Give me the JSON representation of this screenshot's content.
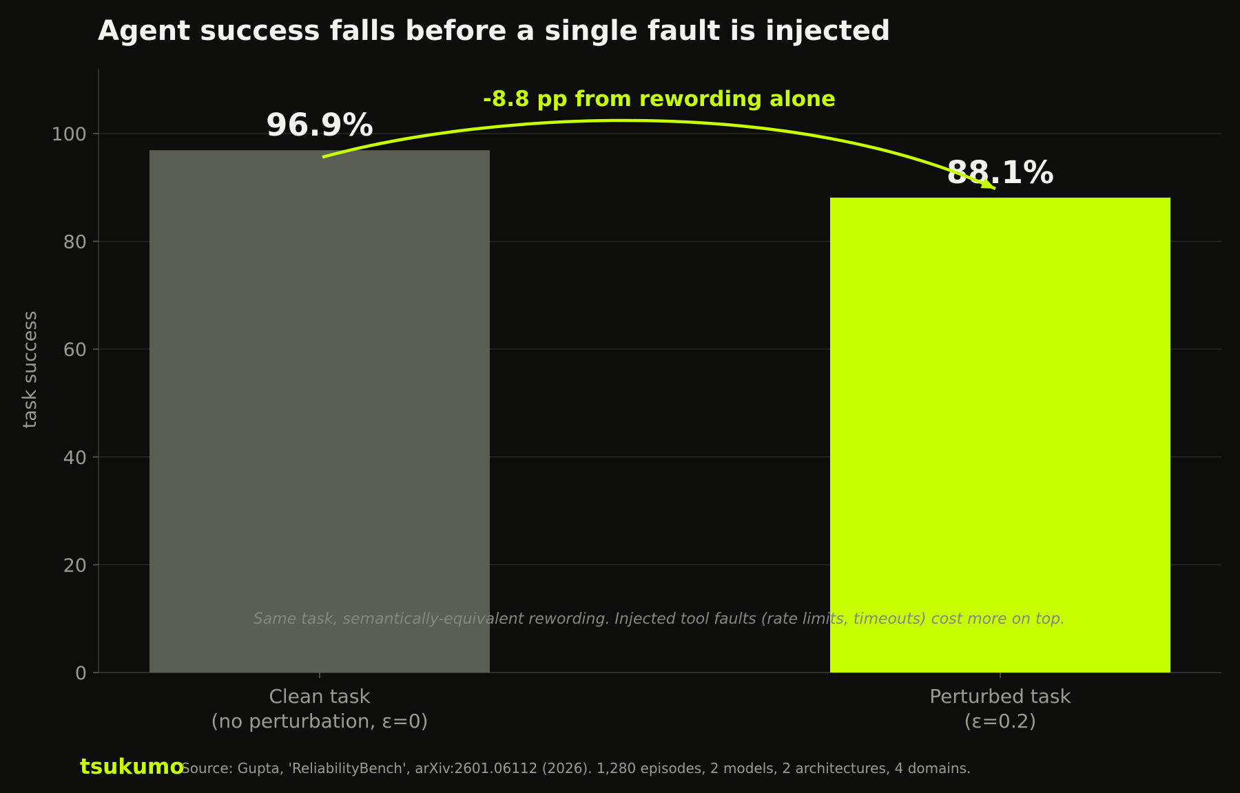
{
  "chart_data": {
    "type": "bar",
    "title": "Agent success falls before a single fault is injected",
    "ylabel": "task success",
    "ylim": [
      0,
      112
    ],
    "yticks": [
      0,
      20,
      40,
      60,
      80,
      100
    ],
    "grid": true,
    "categories": [
      [
        "Clean task",
        "(no perturbation, ε=0)"
      ],
      [
        "Perturbed task",
        "(ε=0.2)"
      ]
    ],
    "values": [
      96.9,
      88.1
    ],
    "value_labels": [
      "96.9%",
      "88.1%"
    ],
    "colors": [
      "#5a5e54",
      "#c8ff00"
    ],
    "annotation": "-8.8 pp from rewording alone",
    "annotation_color": "#c8ff00",
    "note": "Same task, semantically-equivalent rewording. Injected tool faults (rate limits, timeouts) cost more on top."
  },
  "footer": {
    "brand": "tsukumo",
    "source": "Source: Gupta, 'ReliabilityBench', arXiv:2601.06112 (2026). 1,280 episodes, 2 models, 2 architectures, 4 domains."
  }
}
